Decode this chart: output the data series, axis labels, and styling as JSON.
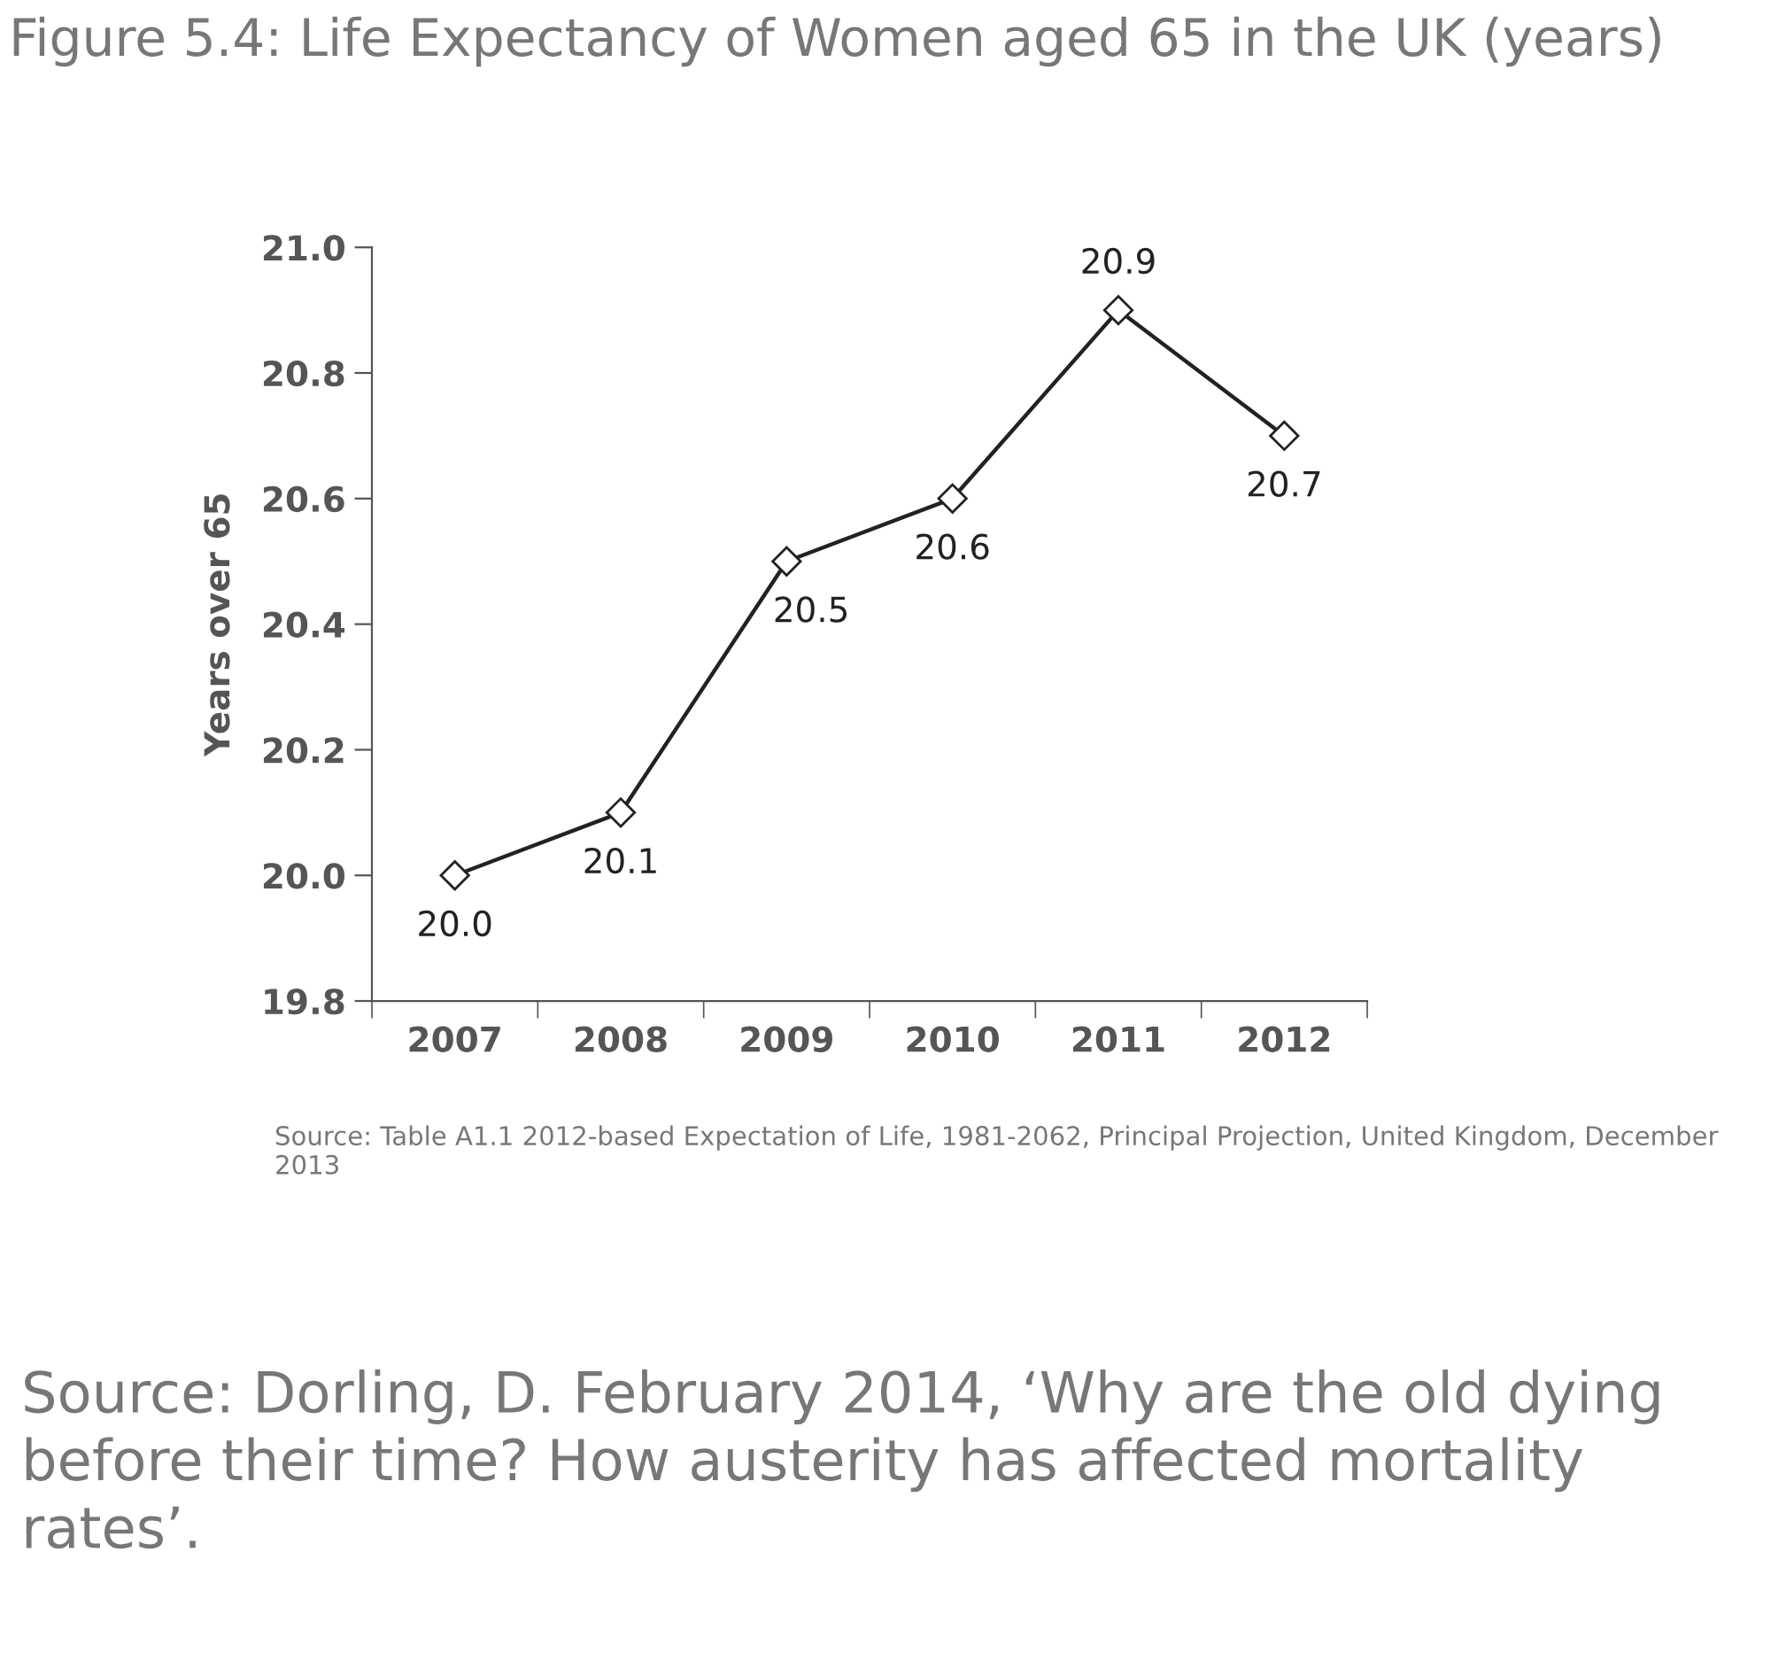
{
  "chart_data": {
    "type": "line",
    "title": "Figure 5.4: Life Expectancy of Women aged 65 in the UK (years)",
    "ylabel": "Years over 65",
    "categories": [
      "2007",
      "2008",
      "2009",
      "2010",
      "2011",
      "2012"
    ],
    "series": [
      {
        "color": "#222222",
        "values": [
          20.0,
          20.1,
          20.5,
          20.6,
          20.9,
          20.7
        ],
        "value_labels": [
          "20.0",
          "20.1",
          "20.5",
          "20.6",
          "20.9",
          "20.7"
        ]
      }
    ],
    "ylim": [
      19.8,
      21.0
    ],
    "yticks": [
      {
        "value": 19.8,
        "label": "19.8"
      },
      {
        "value": 20.0,
        "label": "20.0"
      },
      {
        "value": 20.2,
        "label": "20.2"
      },
      {
        "value": 20.4,
        "label": "20.4"
      },
      {
        "value": 20.6,
        "label": "20.6"
      },
      {
        "value": 20.8,
        "label": "20.8"
      },
      {
        "value": 21.0,
        "label": "21.0"
      }
    ],
    "marker": "diamond",
    "line_style": "solid",
    "grid": false,
    "annotations": [
      "Source: Table A1.1 2012-based Expectation of Life, 1981-2062, Principal Projection, United Kingdom, December 2013",
      "Source: Dorling, D. February 2014, ‘Why are the old dying before their time? How austerity has affected mortality rates’."
    ]
  }
}
